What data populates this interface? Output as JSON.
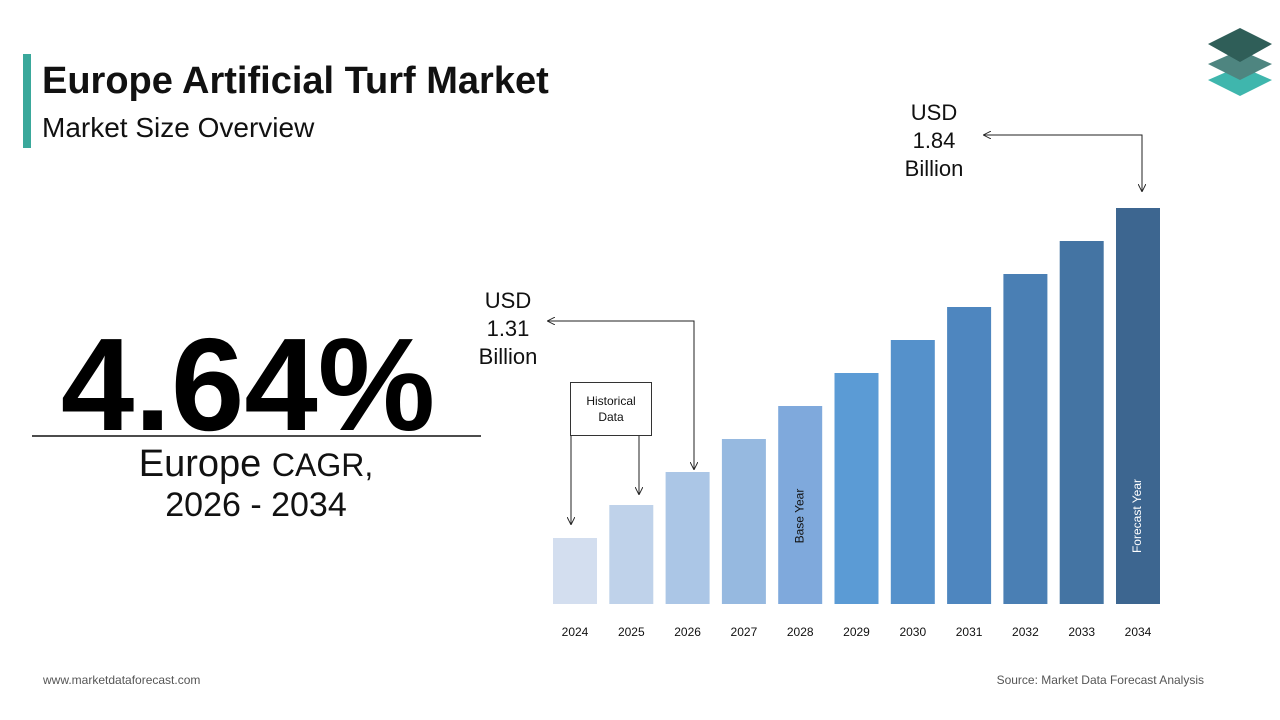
{
  "header": {
    "title": "Europe Artificial Turf Market",
    "subtitle": "Market Size Overview"
  },
  "cagr": {
    "value": "4.64%",
    "region": "Europe",
    "label": "CAGR,",
    "period": "2026 - 2034"
  },
  "chart_data": {
    "type": "bar",
    "categories": [
      "2024",
      "2025",
      "2026",
      "2027",
      "2028",
      "2029",
      "2030",
      "2031",
      "2032",
      "2033",
      "2034"
    ],
    "colors": [
      "#d3deef",
      "#bfd2ea",
      "#abc6e6",
      "#96b9e0",
      "#7fa9dc",
      "#5b9bd5",
      "#5591cb",
      "#4e86bf",
      "#4a7fb4",
      "#4474a3",
      "#3d6690"
    ],
    "bar_labels": {
      "base": "Base Year",
      "forecast": "Forecast Year"
    },
    "historical_label": "Historical Data",
    "annotations": [
      {
        "lines": [
          "USD",
          "1.31",
          "Billion"
        ]
      },
      {
        "lines": [
          "USD",
          "1.84",
          "Billion"
        ]
      }
    ]
  },
  "footer": {
    "website": "www.marketdataforecast.com",
    "source": "Source: Market Data Forecast Analysis"
  }
}
